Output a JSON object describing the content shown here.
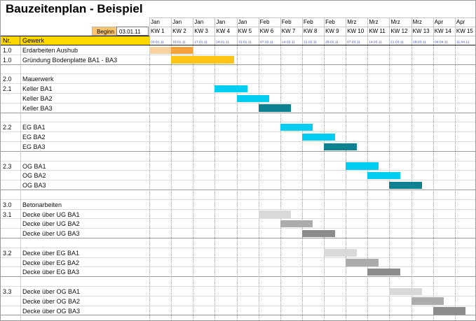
{
  "title": "Bauzeitenplan - Beispiel",
  "header": {
    "begin_label": "Beginn",
    "begin_value": "03.01.11",
    "nr_label": "Nr.",
    "gewerk_label": "Gewerk"
  },
  "colors": {
    "header_fill": "#FFD800",
    "begin_fill": "#F9C46B",
    "date_text": "#2F3FBE",
    "grid_dotted": "#A9A9A9",
    "row_line": "#DCDCDC",
    "section_line": "#9B9B9B",
    "cyan": "#00CDF2",
    "teal": "#0C8191",
    "orange": "#F9A23C",
    "gold": "#FDC616"
  },
  "chart_data": {
    "type": "bar",
    "subtype": "gantt",
    "title": "Bauzeitenplan - Beispiel",
    "begin_date": "03.01.11",
    "x_axis": "Kalenderwochen KW 1 - KW 15 (Jan - Apr 2011)",
    "weeks": [
      {
        "month": "Jan",
        "kw": "KW 1",
        "date": "03.01.11"
      },
      {
        "month": "Jan",
        "kw": "KW 2",
        "date": "10.01.11"
      },
      {
        "month": "Jan",
        "kw": "KW 3",
        "date": "17.01.11"
      },
      {
        "month": "Jan",
        "kw": "KW 4",
        "date": "24.01.11"
      },
      {
        "month": "Jan",
        "kw": "KW 5",
        "date": "31.01.11"
      },
      {
        "month": "Feb",
        "kw": "KW 6",
        "date": "07.02.11"
      },
      {
        "month": "Feb",
        "kw": "KW 7",
        "date": "14.02.11"
      },
      {
        "month": "Feb",
        "kw": "KW 8",
        "date": "21.02.11"
      },
      {
        "month": "Feb",
        "kw": "KW 9",
        "date": "28.02.11"
      },
      {
        "month": "Mrz",
        "kw": "KW 10",
        "date": "07.03.11"
      },
      {
        "month": "Mrz",
        "kw": "KW 11",
        "date": "14.03.11"
      },
      {
        "month": "Mrz",
        "kw": "KW 12",
        "date": "21.03.11"
      },
      {
        "month": "Mrz",
        "kw": "KW 13",
        "date": "28.03.11"
      },
      {
        "month": "Apr",
        "kw": "KW 14",
        "date": "04.04.11"
      },
      {
        "month": "Apr",
        "kw": "KW 15",
        "date": "11.04.11"
      }
    ],
    "rows": [
      {
        "nr": "1.0",
        "gewerk": "Erdarbeiten Aushub",
        "sep": false,
        "bars": [
          {
            "start": 1,
            "end": 2,
            "color": "#FAD2A0"
          },
          {
            "start": 2,
            "end": 3,
            "color": "#F9A23C"
          }
        ]
      },
      {
        "nr": "1.0",
        "gewerk": "Gründung Bodenplatte BA1 - BA3",
        "sep": true,
        "bars": [
          {
            "start": 2,
            "end": 4.9,
            "color": "#FDC616"
          }
        ]
      },
      {
        "nr": "",
        "gewerk": "",
        "sep": false,
        "bars": []
      },
      {
        "nr": "2.0",
        "gewerk": "Mauerwerk",
        "sep": false,
        "bars": []
      },
      {
        "nr": "2.1",
        "gewerk": "Keller BA1",
        "sep": false,
        "bars": [
          {
            "start": 4,
            "end": 5.5,
            "color": "#00CDF2"
          }
        ]
      },
      {
        "nr": "",
        "gewerk": "Keller BA2",
        "sep": false,
        "bars": [
          {
            "start": 5,
            "end": 6.5,
            "color": "#00CDF2"
          }
        ]
      },
      {
        "nr": "",
        "gewerk": "Keller BA3",
        "sep": true,
        "bars": [
          {
            "start": 6,
            "end": 7.5,
            "color": "#0C8191"
          }
        ]
      },
      {
        "nr": "",
        "gewerk": "",
        "sep": false,
        "bars": []
      },
      {
        "nr": "2.2",
        "gewerk": "EG BA1",
        "sep": false,
        "bars": [
          {
            "start": 7,
            "end": 8.5,
            "color": "#00CDF2"
          }
        ]
      },
      {
        "nr": "",
        "gewerk": "EG BA2",
        "sep": false,
        "bars": [
          {
            "start": 8,
            "end": 9.5,
            "color": "#00CDF2"
          }
        ]
      },
      {
        "nr": "",
        "gewerk": "EG BA3",
        "sep": true,
        "bars": [
          {
            "start": 9,
            "end": 10.5,
            "color": "#0C8191"
          }
        ]
      },
      {
        "nr": "",
        "gewerk": "",
        "sep": false,
        "bars": []
      },
      {
        "nr": "2.3",
        "gewerk": "OG BA1",
        "sep": false,
        "bars": [
          {
            "start": 10,
            "end": 11.5,
            "color": "#00CDF2"
          }
        ]
      },
      {
        "nr": "",
        "gewerk": "OG BA2",
        "sep": false,
        "bars": [
          {
            "start": 11,
            "end": 12.5,
            "color": "#00CDF2"
          }
        ]
      },
      {
        "nr": "",
        "gewerk": "OG BA3",
        "sep": true,
        "bars": [
          {
            "start": 12,
            "end": 13.5,
            "color": "#0C8191"
          }
        ]
      },
      {
        "nr": "",
        "gewerk": "",
        "sep": false,
        "bars": []
      },
      {
        "nr": "3.0",
        "gewerk": "Betonarbeiten",
        "sep": false,
        "bars": []
      },
      {
        "nr": "3.1",
        "gewerk": "Decke über UG BA1",
        "sep": false,
        "bars": [
          {
            "start": 6,
            "end": 7.5,
            "color": "#D9D9D9"
          }
        ]
      },
      {
        "nr": "",
        "gewerk": "Decke über UG BA2",
        "sep": false,
        "bars": [
          {
            "start": 7,
            "end": 8.5,
            "color": "#ACACAC"
          }
        ]
      },
      {
        "nr": "",
        "gewerk": "Decke über UG BA3",
        "sep": true,
        "bars": [
          {
            "start": 8,
            "end": 9.5,
            "color": "#8C8C8C"
          }
        ]
      },
      {
        "nr": "",
        "gewerk": "",
        "sep": false,
        "bars": []
      },
      {
        "nr": "3.2",
        "gewerk": "Decke über EG BA1",
        "sep": false,
        "bars": [
          {
            "start": 9,
            "end": 10.5,
            "color": "#D9D9D9"
          }
        ]
      },
      {
        "nr": "",
        "gewerk": "Decke über EG BA2",
        "sep": false,
        "bars": [
          {
            "start": 10,
            "end": 11.5,
            "color": "#ACACAC"
          }
        ]
      },
      {
        "nr": "",
        "gewerk": "Decke über EG BA3",
        "sep": true,
        "bars": [
          {
            "start": 11,
            "end": 12.5,
            "color": "#8C8C8C"
          }
        ]
      },
      {
        "nr": "",
        "gewerk": "",
        "sep": false,
        "bars": []
      },
      {
        "nr": "3.3",
        "gewerk": "Decke über OG BA1",
        "sep": false,
        "bars": [
          {
            "start": 12,
            "end": 13.5,
            "color": "#D9D9D9"
          }
        ]
      },
      {
        "nr": "",
        "gewerk": "Decke über OG BA2",
        "sep": false,
        "bars": [
          {
            "start": 13,
            "end": 14.5,
            "color": "#ACACAC"
          }
        ]
      },
      {
        "nr": "",
        "gewerk": "Decke über OG BA3",
        "sep": true,
        "bars": [
          {
            "start": 14,
            "end": 15.5,
            "color": "#8C8C8C"
          }
        ]
      },
      {
        "nr": "",
        "gewerk": "",
        "sep": false,
        "bars": []
      }
    ]
  }
}
